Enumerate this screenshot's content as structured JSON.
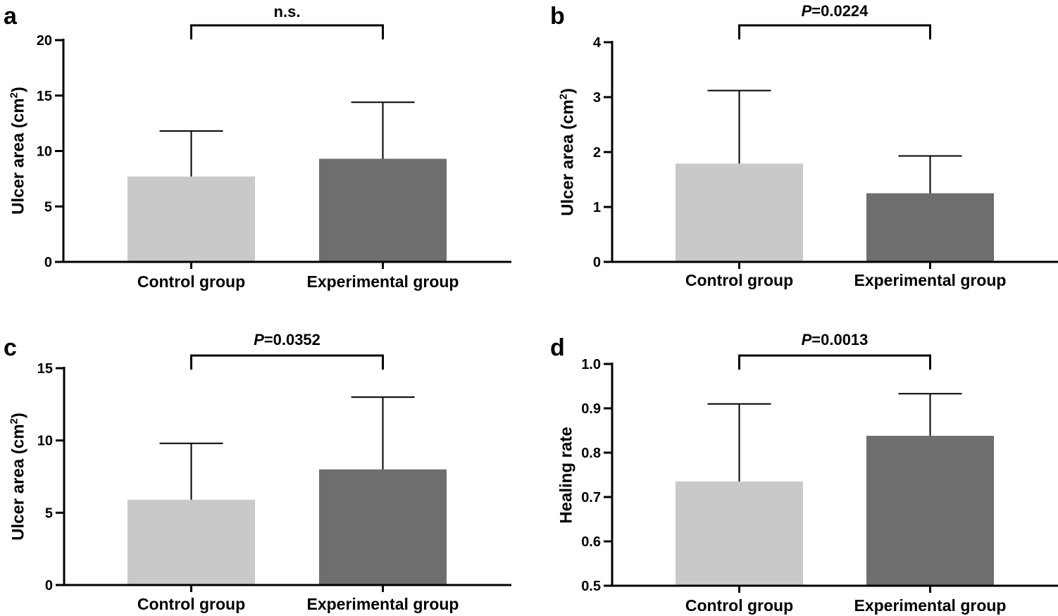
{
  "colors": {
    "control": "#c9c9c9",
    "experimental": "#6e6e6e",
    "axis": "#000000"
  },
  "chart_data": [
    {
      "type": "bar",
      "panel": "a",
      "categories": [
        "Control group",
        "Experimental group"
      ],
      "values": [
        7.7,
        9.3
      ],
      "error_upper": [
        11.8,
        14.4
      ],
      "ylabel": "Ulcer area (cm",
      "ylabel_sup": "2",
      "ylabel_end": ")",
      "ylim": [
        0,
        20
      ],
      "yticks": [
        0,
        5,
        10,
        15,
        20
      ],
      "ytick_labels": [
        "0",
        "5",
        "10",
        "15",
        "20"
      ],
      "significance": {
        "prefix": "",
        "text": "n.s."
      },
      "grid": false
    },
    {
      "type": "bar",
      "panel": "b",
      "categories": [
        "Control group",
        "Experimental group"
      ],
      "values": [
        1.79,
        1.25
      ],
      "error_upper": [
        3.12,
        1.93
      ],
      "ylabel": "Ulcer area (cm",
      "ylabel_sup": "2",
      "ylabel_end": ")",
      "ylim": [
        0,
        4
      ],
      "yticks": [
        0,
        1,
        2,
        3,
        4
      ],
      "ytick_labels": [
        "0",
        "1",
        "2",
        "3",
        "4"
      ],
      "significance": {
        "prefix": "P",
        "text": "=0.0224"
      },
      "grid": false
    },
    {
      "type": "bar",
      "panel": "c",
      "categories": [
        "Control group",
        "Experimental group"
      ],
      "values": [
        5.9,
        8.0
      ],
      "error_upper": [
        9.8,
        13.0
      ],
      "ylabel": "Ulcer area (cm",
      "ylabel_sup": "2",
      "ylabel_end": ")",
      "ylim": [
        0,
        15
      ],
      "yticks": [
        0,
        5,
        10,
        15
      ],
      "ytick_labels": [
        "0",
        "5",
        "10",
        "15"
      ],
      "significance": {
        "prefix": "P",
        "text": "=0.0352"
      },
      "grid": false
    },
    {
      "type": "bar",
      "panel": "d",
      "categories": [
        "Control group",
        "Experimental group"
      ],
      "values": [
        0.735,
        0.838
      ],
      "error_upper": [
        0.91,
        0.933
      ],
      "ylabel": "Healing rate",
      "ylabel_sup": "",
      "ylabel_end": "",
      "ylim": [
        0.5,
        1.0
      ],
      "yticks": [
        0.5,
        0.6,
        0.7,
        0.8,
        0.9,
        1.0
      ],
      "ytick_labels": [
        "0.5",
        "0.6",
        "0.7",
        "0.8",
        "0.9",
        "1.0"
      ],
      "significance": {
        "prefix": "P",
        "text": "=0.0013"
      },
      "grid": false
    }
  ]
}
